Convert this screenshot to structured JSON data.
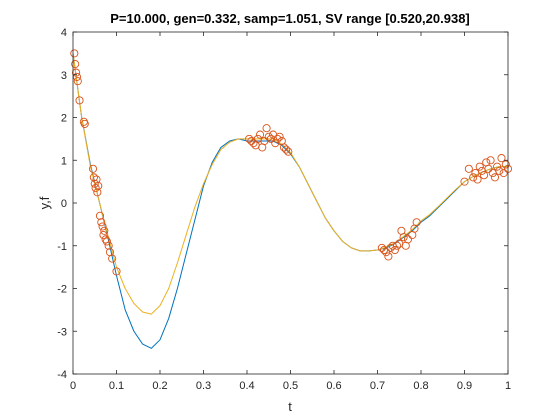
{
  "chart_data": {
    "type": "line",
    "title": "P=10.000, gen=0.332, samp=1.051, SV range [0.520,20.938]",
    "xlabel": "t",
    "ylabel": "y,f",
    "xlim": [
      0,
      1
    ],
    "ylim": [
      -4,
      4
    ],
    "xticks": [
      0,
      0.1,
      0.2,
      0.3,
      0.4,
      0.5,
      0.6,
      0.7,
      0.8,
      0.9,
      1
    ],
    "xtick_labels": [
      "0",
      "0.1",
      "0.2",
      "0.3",
      "0.4",
      "0.5",
      "0.6",
      "0.7",
      "0.8",
      "0.9",
      "1"
    ],
    "yticks": [
      -4,
      -3,
      -2,
      -1,
      0,
      1,
      2,
      3,
      4
    ],
    "ytick_labels": [
      "-4",
      "-3",
      "-2",
      "-1",
      "0",
      "1",
      "2",
      "3",
      "4"
    ],
    "grid": false,
    "box": true,
    "series": [
      {
        "kind": "line",
        "color": "#0072BD",
        "x": [
          0,
          0.02,
          0.04,
          0.06,
          0.08,
          0.1,
          0.12,
          0.14,
          0.16,
          0.18,
          0.2,
          0.22,
          0.24,
          0.26,
          0.28,
          0.3,
          0.32,
          0.34,
          0.36,
          0.38,
          0.4,
          0.42,
          0.44,
          0.46,
          0.48,
          0.5,
          0.52,
          0.54,
          0.56,
          0.58,
          0.6,
          0.62,
          0.64,
          0.66,
          0.68,
          0.7,
          0.72,
          0.74,
          0.76,
          0.78,
          0.8,
          0.82,
          0.84,
          0.86,
          0.88,
          0.9,
          0.92,
          0.94,
          0.96,
          0.98,
          1
        ],
        "y": [
          3.5,
          2.0,
          0.9,
          0.05,
          -0.8,
          -1.7,
          -2.5,
          -3.0,
          -3.3,
          -3.4,
          -3.2,
          -2.7,
          -2.0,
          -1.2,
          -0.4,
          0.4,
          0.95,
          1.3,
          1.45,
          1.5,
          1.45,
          1.45,
          1.45,
          1.45,
          1.35,
          1.15,
          0.85,
          0.45,
          0.05,
          -0.35,
          -0.65,
          -0.9,
          -1.05,
          -1.12,
          -1.12,
          -1.1,
          -1.05,
          -0.95,
          -0.8,
          -0.65,
          -0.45,
          -0.3,
          -0.1,
          0.1,
          0.3,
          0.5,
          0.62,
          0.72,
          0.8,
          0.85,
          0.85
        ]
      },
      {
        "kind": "line",
        "color": "#EDB120",
        "x": [
          0,
          0.02,
          0.04,
          0.06,
          0.08,
          0.1,
          0.12,
          0.14,
          0.16,
          0.18,
          0.2,
          0.22,
          0.24,
          0.26,
          0.28,
          0.3,
          0.32,
          0.34,
          0.36,
          0.38,
          0.4,
          0.42,
          0.44,
          0.46,
          0.48,
          0.5,
          0.52,
          0.54,
          0.56,
          0.58,
          0.6,
          0.62,
          0.64,
          0.66,
          0.68,
          0.7,
          0.72,
          0.74,
          0.76,
          0.78,
          0.8,
          0.82,
          0.84,
          0.86,
          0.88,
          0.9,
          0.92,
          0.94,
          0.96,
          0.98,
          1
        ],
        "y": [
          3.5,
          2.0,
          0.85,
          0.05,
          -0.75,
          -1.5,
          -2.0,
          -2.35,
          -2.55,
          -2.6,
          -2.4,
          -2.0,
          -1.4,
          -0.75,
          -0.1,
          0.45,
          0.9,
          1.25,
          1.42,
          1.5,
          1.5,
          1.5,
          1.5,
          1.5,
          1.38,
          1.18,
          0.85,
          0.45,
          0.05,
          -0.35,
          -0.65,
          -0.9,
          -1.05,
          -1.12,
          -1.12,
          -1.1,
          -1.03,
          -0.93,
          -0.78,
          -0.62,
          -0.42,
          -0.27,
          -0.08,
          0.12,
          0.32,
          0.5,
          0.62,
          0.72,
          0.8,
          0.85,
          0.85
        ]
      },
      {
        "kind": "scatter",
        "marker": "circle",
        "color": "#D95319",
        "x": [
          0.003,
          0.005,
          0.007,
          0.009,
          0.011,
          0.015,
          0.025,
          0.027,
          0.046,
          0.048,
          0.05,
          0.052,
          0.054,
          0.056,
          0.058,
          0.062,
          0.065,
          0.068,
          0.07,
          0.072,
          0.075,
          0.078,
          0.082,
          0.085,
          0.09,
          0.1,
          0.405,
          0.41,
          0.415,
          0.42,
          0.425,
          0.43,
          0.435,
          0.44,
          0.445,
          0.45,
          0.455,
          0.46,
          0.465,
          0.47,
          0.475,
          0.48,
          0.485,
          0.49,
          0.495,
          0.71,
          0.715,
          0.72,
          0.725,
          0.73,
          0.735,
          0.74,
          0.745,
          0.75,
          0.755,
          0.76,
          0.765,
          0.77,
          0.78,
          0.785,
          0.79,
          0.9,
          0.91,
          0.92,
          0.925,
          0.93,
          0.935,
          0.94,
          0.945,
          0.95,
          0.955,
          0.96,
          0.965,
          0.97,
          0.975,
          0.98,
          0.985,
          0.99,
          0.995,
          1.0
        ],
        "y": [
          3.5,
          3.25,
          3.05,
          2.95,
          2.85,
          2.4,
          1.9,
          1.85,
          0.8,
          0.6,
          0.45,
          0.35,
          0.55,
          0.25,
          0.4,
          -0.3,
          -0.45,
          -0.55,
          -0.75,
          -0.65,
          -0.85,
          -0.9,
          -1.0,
          -1.15,
          -1.3,
          -1.6,
          1.5,
          1.45,
          1.4,
          1.35,
          1.5,
          1.6,
          1.3,
          1.45,
          1.75,
          1.55,
          1.5,
          1.6,
          1.4,
          1.5,
          1.55,
          1.45,
          1.3,
          1.25,
          1.2,
          -1.05,
          -1.1,
          -1.15,
          -1.25,
          -1.05,
          -1.0,
          -1.1,
          -1.0,
          -0.95,
          -0.65,
          -0.8,
          -1.0,
          -0.85,
          -0.75,
          -0.6,
          -0.45,
          0.5,
          0.8,
          0.6,
          0.7,
          0.55,
          0.85,
          0.75,
          0.65,
          0.95,
          0.8,
          1.0,
          0.7,
          0.6,
          0.85,
          0.75,
          1.05,
          0.7,
          0.9,
          0.8
        ]
      }
    ]
  }
}
